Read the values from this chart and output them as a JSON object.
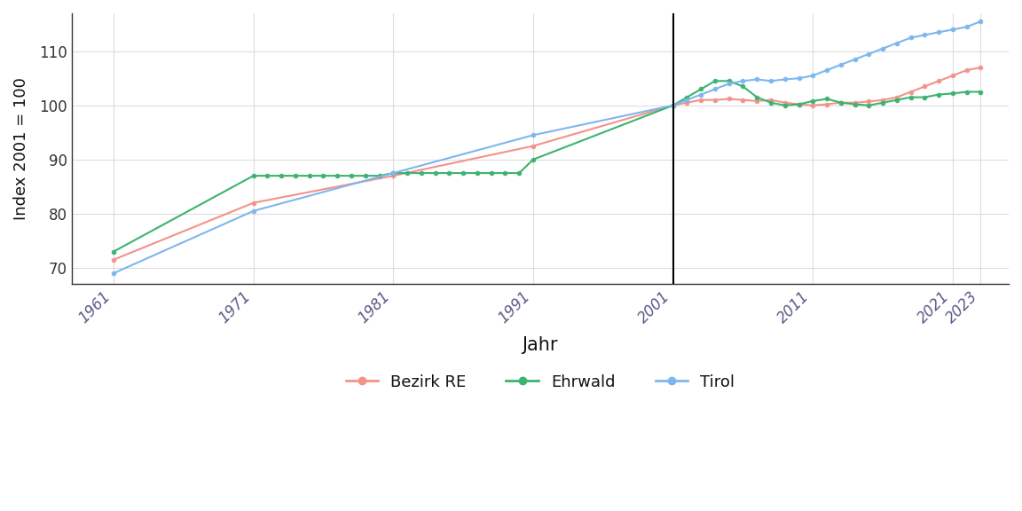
{
  "title": "",
  "xlabel": "Jahr",
  "ylabel": "Index 2001 = 100",
  "background_color": "#ffffff",
  "grid_color": "#dddddd",
  "vline_x": 2001,
  "ylim": [
    67,
    117
  ],
  "xlim": [
    1958,
    2025
  ],
  "xticks": [
    1961,
    1971,
    1981,
    1991,
    2001,
    2011,
    2021,
    2023
  ],
  "yticks": [
    70,
    80,
    90,
    100,
    110
  ],
  "series": {
    "Bezirk RE": {
      "color": "#F4928A",
      "years": [
        1961,
        1971,
        1981,
        1991,
        2001,
        2002,
        2003,
        2004,
        2005,
        2006,
        2007,
        2008,
        2009,
        2010,
        2011,
        2012,
        2013,
        2014,
        2015,
        2016,
        2017,
        2018,
        2019,
        2020,
        2021,
        2022,
        2023
      ],
      "values": [
        71.5,
        82.0,
        87.0,
        92.5,
        100.0,
        100.5,
        101.0,
        101.0,
        101.2,
        101.0,
        100.8,
        101.0,
        100.5,
        100.2,
        100.0,
        100.2,
        100.5,
        100.5,
        100.7,
        101.0,
        101.5,
        102.5,
        103.5,
        104.5,
        105.5,
        106.5,
        107.0
      ]
    },
    "Ehrwald": {
      "color": "#3DB370",
      "years": [
        1961,
        1971,
        1972,
        1973,
        1974,
        1975,
        1976,
        1977,
        1978,
        1979,
        1980,
        1981,
        1982,
        1983,
        1984,
        1985,
        1986,
        1987,
        1988,
        1989,
        1990,
        1991,
        2001,
        2002,
        2003,
        2004,
        2005,
        2006,
        2007,
        2008,
        2009,
        2010,
        2011,
        2012,
        2013,
        2014,
        2015,
        2016,
        2017,
        2018,
        2019,
        2020,
        2021,
        2022,
        2023
      ],
      "values": [
        73.0,
        87.0,
        87.0,
        87.0,
        87.0,
        87.0,
        87.0,
        87.0,
        87.0,
        87.0,
        87.0,
        87.5,
        87.5,
        87.5,
        87.5,
        87.5,
        87.5,
        87.5,
        87.5,
        87.5,
        87.5,
        90.0,
        100.0,
        101.5,
        103.0,
        104.5,
        104.5,
        103.5,
        101.5,
        100.5,
        100.0,
        100.2,
        100.8,
        101.2,
        100.5,
        100.2,
        100.0,
        100.5,
        101.0,
        101.5,
        101.5,
        102.0,
        102.2,
        102.5,
        102.5
      ]
    },
    "Tirol": {
      "color": "#7EB6EF",
      "years": [
        1961,
        1971,
        1981,
        1991,
        2001,
        2002,
        2003,
        2004,
        2005,
        2006,
        2007,
        2008,
        2009,
        2010,
        2011,
        2012,
        2013,
        2014,
        2015,
        2016,
        2017,
        2018,
        2019,
        2020,
        2021,
        2022,
        2023
      ],
      "values": [
        69.0,
        80.5,
        87.5,
        94.5,
        100.0,
        101.0,
        102.0,
        103.0,
        104.0,
        104.5,
        104.8,
        104.5,
        104.8,
        105.0,
        105.5,
        106.5,
        107.5,
        108.5,
        109.5,
        110.5,
        111.5,
        112.5,
        113.0,
        113.5,
        114.0,
        114.5,
        115.5
      ]
    }
  },
  "legend": {
    "entries": [
      "Bezirk RE",
      "Ehrwald",
      "Tirol"
    ],
    "ncol": 3,
    "fontsize": 13
  }
}
